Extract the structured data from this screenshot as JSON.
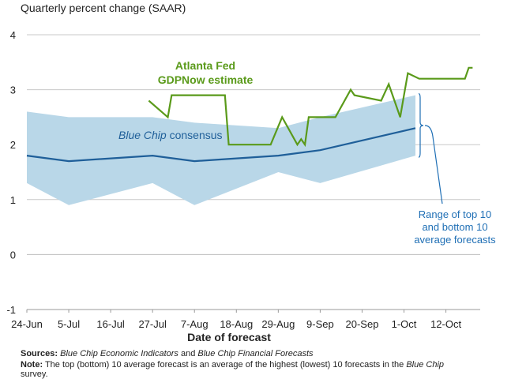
{
  "chart_data": {
    "type": "line",
    "ylabel": "Quarterly percent change (SAAR)",
    "xlabel": "Date of forecast",
    "ylim": [
      -1,
      4
    ],
    "yticks": [
      "-1",
      "0",
      "1",
      "2",
      "3",
      "4"
    ],
    "xlim": [
      "2024-06-24",
      "2024-10-21"
    ],
    "x_ticks": [
      {
        "date": "2024-06-24",
        "label": "24-Jun"
      },
      {
        "date": "2024-07-05",
        "label": "5-Jul"
      },
      {
        "date": "2024-07-16",
        "label": "16-Jul"
      },
      {
        "date": "2024-07-27",
        "label": "27-Jul"
      },
      {
        "date": "2024-08-07",
        "label": "7-Aug"
      },
      {
        "date": "2024-08-18",
        "label": "18-Aug"
      },
      {
        "date": "2024-08-29",
        "label": "29-Aug"
      },
      {
        "date": "2024-09-09",
        "label": "9-Sep"
      },
      {
        "date": "2024-09-20",
        "label": "20-Sep"
      },
      {
        "date": "2024-10-01",
        "label": "1-Oct"
      },
      {
        "date": "2024-10-12",
        "label": "12-Oct"
      }
    ],
    "grid": "horizontal",
    "series": [
      {
        "name": "Atlanta Fed GDPNow estimate",
        "color": "#5a9a1a",
        "points": [
          {
            "x": "2024-07-26",
            "y": 2.8
          },
          {
            "x": "2024-07-31",
            "y": 2.5
          },
          {
            "x": "2024-08-01",
            "y": 2.9
          },
          {
            "x": "2024-08-08",
            "y": 2.9
          },
          {
            "x": "2024-08-15",
            "y": 2.9
          },
          {
            "x": "2024-08-16",
            "y": 2.0
          },
          {
            "x": "2024-08-23",
            "y": 2.0
          },
          {
            "x": "2024-08-27",
            "y": 2.0
          },
          {
            "x": "2024-08-30",
            "y": 2.5
          },
          {
            "x": "2024-09-03",
            "y": 2.0
          },
          {
            "x": "2024-09-04",
            "y": 2.1
          },
          {
            "x": "2024-09-05",
            "y": 2.0
          },
          {
            "x": "2024-09-06",
            "y": 2.5
          },
          {
            "x": "2024-09-09",
            "y": 2.5
          },
          {
            "x": "2024-09-13",
            "y": 2.5
          },
          {
            "x": "2024-09-17",
            "y": 3.0
          },
          {
            "x": "2024-09-18",
            "y": 2.9
          },
          {
            "x": "2024-09-25",
            "y": 2.8
          },
          {
            "x": "2024-09-27",
            "y": 3.1
          },
          {
            "x": "2024-09-30",
            "y": 2.5
          },
          {
            "x": "2024-10-01",
            "y": 2.9
          },
          {
            "x": "2024-10-02",
            "y": 3.3
          },
          {
            "x": "2024-10-05",
            "y": 3.2
          },
          {
            "x": "2024-10-09",
            "y": 3.2
          },
          {
            "x": "2024-10-17",
            "y": 3.2
          },
          {
            "x": "2024-10-18",
            "y": 3.4
          },
          {
            "x": "2024-10-19",
            "y": 3.4
          }
        ]
      },
      {
        "name": "Blue Chip consensus",
        "color": "#1f5f99",
        "points": [
          {
            "x": "2024-06-24",
            "y": 1.8
          },
          {
            "x": "2024-07-05",
            "y": 1.7
          },
          {
            "x": "2024-07-27",
            "y": 1.8
          },
          {
            "x": "2024-08-07",
            "y": 1.7
          },
          {
            "x": "2024-08-29",
            "y": 1.8
          },
          {
            "x": "2024-09-09",
            "y": 1.9
          },
          {
            "x": "2024-10-04",
            "y": 2.3
          }
        ]
      }
    ],
    "band": {
      "name": "Range of top 10 and bottom 10 average forecasts",
      "color": "#b9d7e8",
      "top": [
        {
          "x": "2024-06-24",
          "y": 2.6
        },
        {
          "x": "2024-07-05",
          "y": 2.5
        },
        {
          "x": "2024-07-27",
          "y": 2.5
        },
        {
          "x": "2024-08-07",
          "y": 2.4
        },
        {
          "x": "2024-08-29",
          "y": 2.3
        },
        {
          "x": "2024-09-09",
          "y": 2.5
        },
        {
          "x": "2024-10-04",
          "y": 2.9
        }
      ],
      "bottom": [
        {
          "x": "2024-06-24",
          "y": 1.3
        },
        {
          "x": "2024-07-05",
          "y": 0.9
        },
        {
          "x": "2024-07-27",
          "y": 1.3
        },
        {
          "x": "2024-08-07",
          "y": 0.9
        },
        {
          "x": "2024-08-29",
          "y": 1.5
        },
        {
          "x": "2024-09-09",
          "y": 1.3
        },
        {
          "x": "2024-10-04",
          "y": 1.8
        }
      ]
    },
    "annotations": {
      "gdpnow_line1": "Atlanta Fed",
      "gdpnow_line2": "GDPNow estimate",
      "bluechip_italic": "Blue Chip",
      "bluechip_rest": " consensus",
      "range_line1": "Range of top 10",
      "range_line2": "and bottom 10",
      "range_line3": "average forecasts"
    }
  },
  "footnotes": {
    "sources_label": "Sources:",
    "sources_italic1": "Blue Chip Economic Indicators",
    "sources_and": " and ",
    "sources_italic2": "Blue Chip Financial Forecasts",
    "note_label": "Note:",
    "note_text1": " The top (bottom) 10 average forecast is an average of the highest (lowest) 10 forecasts in the ",
    "note_italic": "Blue Chip",
    "note_text2": " survey."
  }
}
